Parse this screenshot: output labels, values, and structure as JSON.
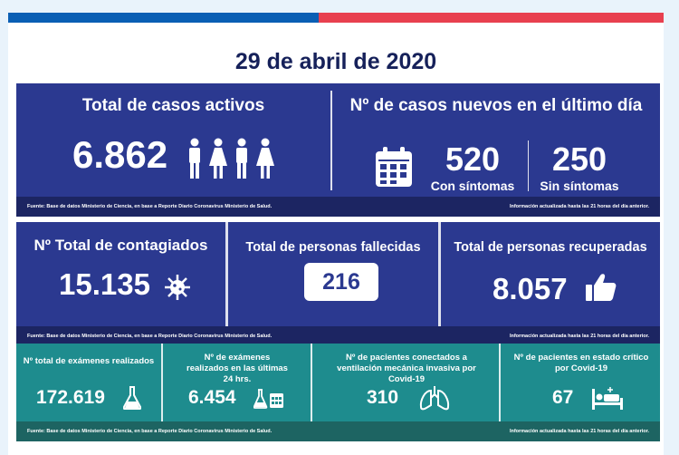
{
  "date": "29 de abril de 2020",
  "colors": {
    "flag_blue": "#0a5fb4",
    "flag_red": "#e8404f",
    "navy": "#2b3990",
    "navy_dark": "#1c2562",
    "teal": "#1e8c8e",
    "teal_dark": "#1d6462",
    "title": "#16215a"
  },
  "row1": {
    "active": {
      "title": "Total de casos activos",
      "value": "6.862",
      "icon": "people-icon"
    },
    "new_cases": {
      "title": "Nº de casos nuevos en el último día",
      "icon": "calendar-icon",
      "with_symptoms_value": "520",
      "with_symptoms_label": "Con síntomas",
      "without_symptoms_value": "250",
      "without_symptoms_label": "Sin síntomas"
    },
    "footer_source": "Fuente: Base de datos Ministerio de Ciencia, en base a Reporte Diario Coronavirus Ministerio de Salud.",
    "footer_update": "Información actualizada hasta las 21 horas  del día anterior."
  },
  "row2": {
    "infected": {
      "title": "Nº Total de contagiados",
      "value": "15.135",
      "icon": "virus-icon"
    },
    "deceased": {
      "title": "Total de personas fallecidas",
      "value": "216"
    },
    "recovered": {
      "title": "Total de personas recuperadas",
      "value": "8.057",
      "icon": "thumbs-up-icon"
    },
    "footer_source": "Fuente: Base de datos Ministerio de Ciencia, en base a Reporte Diario Coronavirus Ministerio de Salud.",
    "footer_update": "Información actualizada hasta las 21 horas  del día anterior."
  },
  "row3": {
    "exams_total": {
      "title": "Nº total de exámenes realizados",
      "value": "172.619",
      "icon": "flask-icon"
    },
    "exams_24h": {
      "title": "Nº de exámenes realizados en las últimas 24 hrs.",
      "value": "6.454",
      "icon": "flask-calendar-icon"
    },
    "ventilation": {
      "title": "Nº de pacientes conectados a ventilación mecánica invasiva por Covid-19",
      "value": "310",
      "icon": "lungs-icon"
    },
    "critical": {
      "title": "Nº de pacientes en estado crítico por Covid-19",
      "value": "67",
      "icon": "hospital-bed-icon"
    },
    "footer_source": "Fuente: Base de datos Ministerio de Ciencia, en base a Reporte Diario Coronavirus Ministerio de Salud.",
    "footer_update": "Información actualizada hasta las 21 horas  del día anterior."
  }
}
